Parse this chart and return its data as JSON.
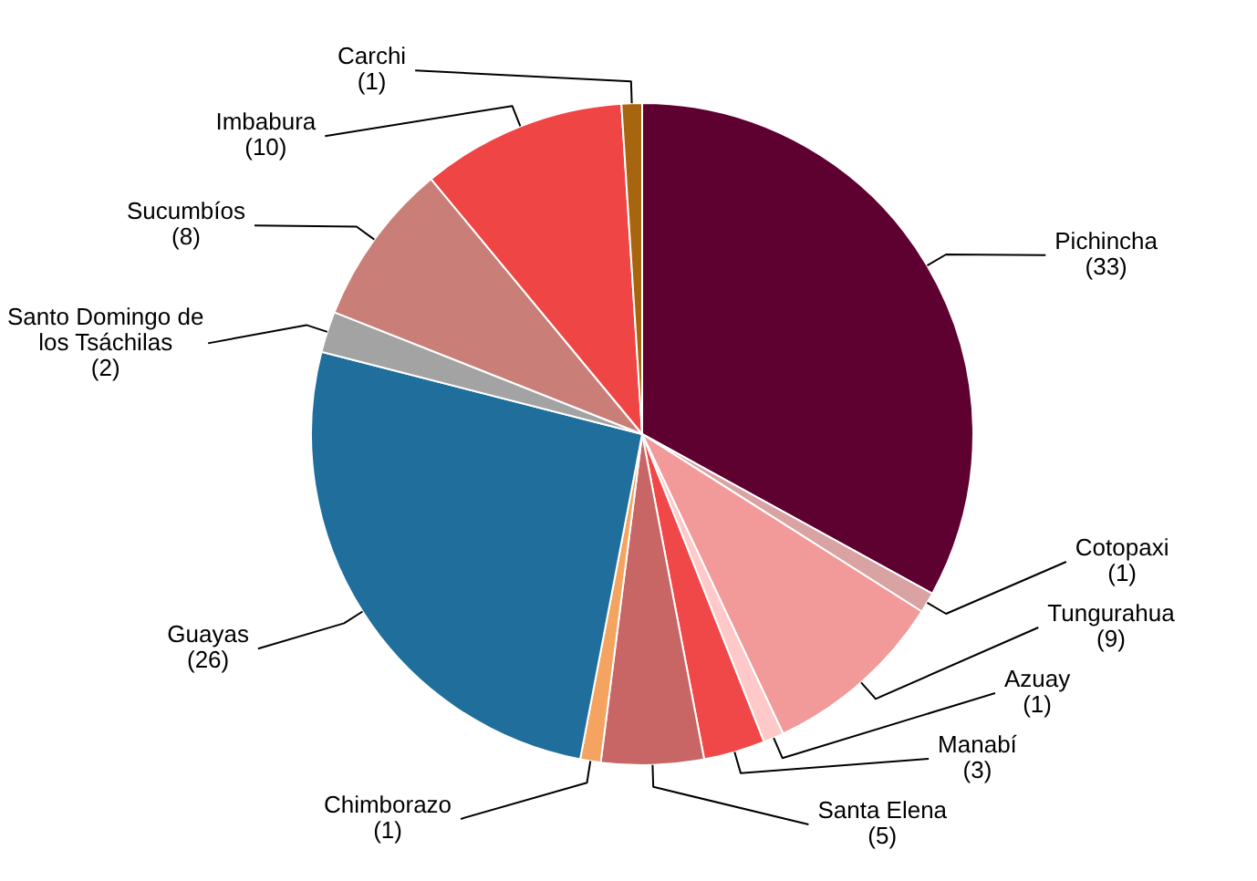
{
  "chart_data": {
    "type": "pie",
    "categories": [
      "Pichincha",
      "Cotopaxi",
      "Tungurahua",
      "Azuay",
      "Manabí",
      "Santa Elena",
      "Chimborazo",
      "Guayas",
      "Santo Domingo de los Tsáchilas",
      "Sucumbíos",
      "Imbabura",
      "Carchi"
    ],
    "values": [
      33,
      1,
      9,
      1,
      3,
      5,
      1,
      26,
      2,
      8,
      10,
      1
    ],
    "value_labels": [
      "(33)",
      "(1)",
      "(9)",
      "(1)",
      "(3)",
      "(5)",
      "(1)",
      "(26)",
      "(2)",
      "(8)",
      "(10)",
      "(1)"
    ],
    "colors": [
      "#5e0030",
      "#d9a3a3",
      "#f29a9a",
      "#ffc9c9",
      "#f04848",
      "#c86565",
      "#f4a460",
      "#1f6e9c",
      "#a3a3a3",
      "#c97f77",
      "#f04545",
      "#a8650f"
    ]
  }
}
